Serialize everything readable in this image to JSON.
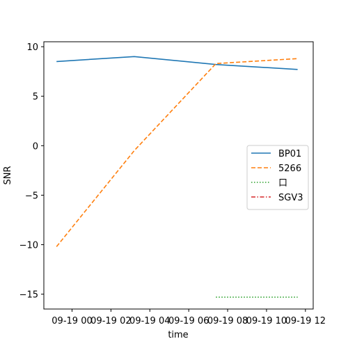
{
  "chart_data": {
    "type": "line",
    "title": "",
    "xlabel": "time",
    "ylabel": "SNR",
    "x_unit": "hours since 09-19 00:00",
    "xlim": [
      -1.45,
      12.4
    ],
    "ylim": [
      -16.5,
      10.5
    ],
    "x_ticks": [
      {
        "value": 0,
        "label": "09-19 00"
      },
      {
        "value": 2,
        "label": "09-19 02"
      },
      {
        "value": 4,
        "label": "09-19 04"
      },
      {
        "value": 6,
        "label": "09-19 06"
      },
      {
        "value": 8,
        "label": "09-19 08"
      },
      {
        "value": 10,
        "label": "09-19 10"
      },
      {
        "value": 12,
        "label": "09-19 12"
      }
    ],
    "y_ticks": [
      {
        "value": 10,
        "label": "10"
      },
      {
        "value": 5,
        "label": "5"
      },
      {
        "value": 0,
        "label": "0"
      },
      {
        "value": -5,
        "label": "−5"
      },
      {
        "value": -10,
        "label": "−10"
      },
      {
        "value": -15,
        "label": "−15"
      }
    ],
    "grid": false,
    "legend_position": "center-right",
    "series": [
      {
        "name": "BP01",
        "color": "#1f77b4",
        "dash": "solid",
        "x": [
          -0.8,
          3.2,
          7.4,
          11.6
        ],
        "y": [
          8.5,
          9.0,
          8.2,
          7.7
        ]
      },
      {
        "name": "5266",
        "color": "#ff7f0e",
        "dash": "dashed",
        "x": [
          -0.8,
          3.2,
          7.4,
          11.6
        ],
        "y": [
          -10.2,
          -0.5,
          8.3,
          8.8
        ]
      },
      {
        "name": "口",
        "color": "#2ca02c",
        "dash": "dotted",
        "x": [
          7.4,
          11.6
        ],
        "y": [
          -15.3,
          -15.3
        ]
      },
      {
        "name": "SGV3",
        "color": "#d62728",
        "dash": "dashdot",
        "x": [],
        "y": []
      }
    ]
  }
}
